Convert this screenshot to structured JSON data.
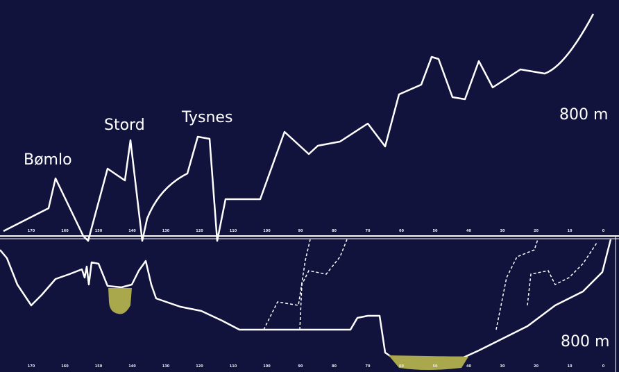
{
  "labels": {
    "bomlo": "Bømlo",
    "stord": "Stord",
    "tysnes": "Tysnes"
  },
  "scale": {
    "upper": "800 m",
    "lower": "800 m"
  },
  "axis_ticks": [
    "170",
    "160",
    "150",
    "140",
    "130",
    "120",
    "110",
    "100",
    "90",
    "80",
    "70",
    "60",
    "50",
    "40",
    "30",
    "20",
    "10",
    "0"
  ],
  "colors": {
    "background": "#12133d",
    "line": "#ffffff",
    "sediment_fill": "#a9a84c"
  }
}
